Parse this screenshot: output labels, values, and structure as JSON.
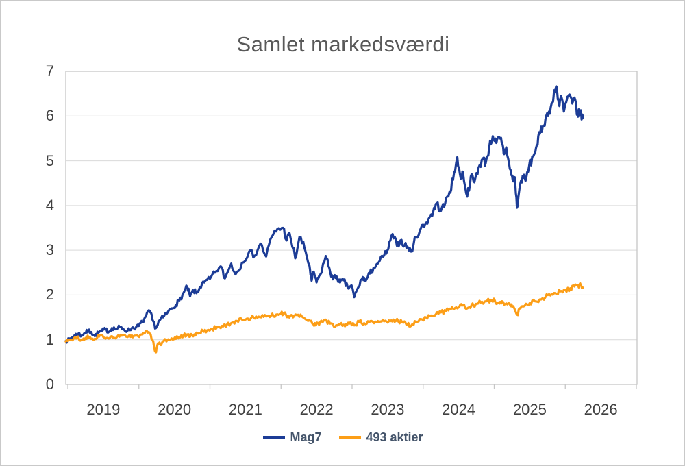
{
  "chart_data": {
    "type": "line",
    "title": "Samlet markedsværdi",
    "xlabel": "",
    "ylabel": "",
    "grid": "horizontal",
    "background": "#ffffff",
    "axis_color": "#c6c6c6",
    "gridline_color": "#d9d9d9",
    "text_color": "#404040",
    "title_color": "#595959",
    "y_axis": {
      "min": 0,
      "max": 7,
      "tick_interval": 1
    },
    "y_tick_labels": [
      "0",
      "1",
      "2",
      "3",
      "4",
      "5",
      "6",
      "7"
    ],
    "x_axis": {
      "ticks_at_year_boundaries": true,
      "first_tick_year": 2019,
      "last_tick_year": 2027,
      "labels_centered_between_ticks": true
    },
    "x_tick_labels": [
      "2019",
      "2020",
      "2021",
      "2022",
      "2023",
      "2024",
      "2025",
      "2026"
    ],
    "legend": {
      "position": "bottom",
      "entries": [
        "Mag7",
        "493 aktier"
      ]
    },
    "series": [
      {
        "name": "Mag7",
        "color": "#1C3C96",
        "points": [
          [
            2018.97,
            0.97
          ],
          [
            2019.02,
            1.0
          ],
          [
            2019.06,
            1.05
          ],
          [
            2019.1,
            1.1
          ],
          [
            2019.15,
            1.14
          ],
          [
            2019.19,
            1.09
          ],
          [
            2019.24,
            1.15
          ],
          [
            2019.29,
            1.2
          ],
          [
            2019.33,
            1.17
          ],
          [
            2019.38,
            1.08
          ],
          [
            2019.43,
            1.16
          ],
          [
            2019.48,
            1.2
          ],
          [
            2019.53,
            1.23
          ],
          [
            2019.58,
            1.18
          ],
          [
            2019.62,
            1.26
          ],
          [
            2019.68,
            1.24
          ],
          [
            2019.73,
            1.28
          ],
          [
            2019.78,
            1.24
          ],
          [
            2019.84,
            1.2
          ],
          [
            2019.9,
            1.26
          ],
          [
            2019.96,
            1.28
          ],
          [
            2020.0,
            1.31
          ],
          [
            2020.05,
            1.4
          ],
          [
            2020.1,
            1.52
          ],
          [
            2020.15,
            1.65
          ],
          [
            2020.19,
            1.45
          ],
          [
            2020.24,
            1.26
          ],
          [
            2020.29,
            1.43
          ],
          [
            2020.34,
            1.5
          ],
          [
            2020.4,
            1.6
          ],
          [
            2020.46,
            1.7
          ],
          [
            2020.52,
            1.78
          ],
          [
            2020.57,
            1.88
          ],
          [
            2020.63,
            2.05
          ],
          [
            2020.68,
            2.18
          ],
          [
            2020.72,
            1.97
          ],
          [
            2020.77,
            2.1
          ],
          [
            2020.81,
            2.04
          ],
          [
            2020.86,
            2.18
          ],
          [
            2020.92,
            2.28
          ],
          [
            2021.0,
            2.36
          ],
          [
            2021.07,
            2.5
          ],
          [
            2021.15,
            2.64
          ],
          [
            2021.21,
            2.37
          ],
          [
            2021.3,
            2.7
          ],
          [
            2021.36,
            2.46
          ],
          [
            2021.45,
            2.72
          ],
          [
            2021.55,
            2.97
          ],
          [
            2021.63,
            2.88
          ],
          [
            2021.71,
            3.15
          ],
          [
            2021.79,
            2.86
          ],
          [
            2021.87,
            3.3
          ],
          [
            2021.95,
            3.48
          ],
          [
            2022.03,
            3.5
          ],
          [
            2022.08,
            3.22
          ],
          [
            2022.12,
            3.38
          ],
          [
            2022.2,
            2.82
          ],
          [
            2022.26,
            3.3
          ],
          [
            2022.33,
            3.05
          ],
          [
            2022.4,
            2.65
          ],
          [
            2022.43,
            2.32
          ],
          [
            2022.46,
            2.52
          ],
          [
            2022.5,
            2.28
          ],
          [
            2022.55,
            2.45
          ],
          [
            2022.63,
            2.87
          ],
          [
            2022.68,
            2.6
          ],
          [
            2022.73,
            2.35
          ],
          [
            2022.78,
            2.42
          ],
          [
            2022.83,
            2.28
          ],
          [
            2022.88,
            2.33
          ],
          [
            2022.94,
            2.15
          ],
          [
            2022.99,
            2.22
          ],
          [
            2023.03,
            1.95
          ],
          [
            2023.09,
            2.18
          ],
          [
            2023.15,
            2.4
          ],
          [
            2023.19,
            2.31
          ],
          [
            2023.25,
            2.48
          ],
          [
            2023.3,
            2.6
          ],
          [
            2023.39,
            2.77
          ],
          [
            2023.45,
            2.88
          ],
          [
            2023.51,
            3.03
          ],
          [
            2023.57,
            3.36
          ],
          [
            2023.63,
            3.1
          ],
          [
            2023.68,
            3.22
          ],
          [
            2023.74,
            3.12
          ],
          [
            2023.79,
            3.05
          ],
          [
            2023.83,
            2.97
          ],
          [
            2023.9,
            3.3
          ],
          [
            2023.97,
            3.5
          ],
          [
            2024.03,
            3.58
          ],
          [
            2024.09,
            3.74
          ],
          [
            2024.14,
            3.85
          ],
          [
            2024.19,
            4.05
          ],
          [
            2024.25,
            3.88
          ],
          [
            2024.31,
            4.05
          ],
          [
            2024.37,
            4.3
          ],
          [
            2024.42,
            4.57
          ],
          [
            2024.48,
            5.08
          ],
          [
            2024.53,
            4.6
          ],
          [
            2024.56,
            4.75
          ],
          [
            2024.62,
            4.2
          ],
          [
            2024.67,
            4.65
          ],
          [
            2024.72,
            4.52
          ],
          [
            2024.78,
            4.85
          ],
          [
            2024.84,
            5.05
          ],
          [
            2024.88,
            4.95
          ],
          [
            2024.93,
            5.3
          ],
          [
            2024.98,
            5.55
          ],
          [
            2025.03,
            5.4
          ],
          [
            2025.08,
            5.5
          ],
          [
            2025.11,
            5.38
          ],
          [
            2025.14,
            5.15
          ],
          [
            2025.17,
            5.3
          ],
          [
            2025.22,
            4.82
          ],
          [
            2025.26,
            4.57
          ],
          [
            2025.29,
            4.63
          ],
          [
            2025.32,
            3.95
          ],
          [
            2025.36,
            4.42
          ],
          [
            2025.4,
            4.66
          ],
          [
            2025.44,
            4.55
          ],
          [
            2025.49,
            4.87
          ],
          [
            2025.55,
            5.1
          ],
          [
            2025.6,
            5.35
          ],
          [
            2025.64,
            5.6
          ],
          [
            2025.68,
            5.75
          ],
          [
            2025.72,
            5.92
          ],
          [
            2025.77,
            6.1
          ],
          [
            2025.82,
            6.3
          ],
          [
            2025.85,
            6.55
          ],
          [
            2025.88,
            6.65
          ],
          [
            2025.91,
            6.25
          ],
          [
            2025.94,
            6.45
          ],
          [
            2025.98,
            6.1
          ],
          [
            2026.02,
            6.35
          ],
          [
            2026.06,
            6.48
          ],
          [
            2026.1,
            6.28
          ],
          [
            2026.14,
            6.36
          ],
          [
            2026.17,
            6.02
          ],
          [
            2026.21,
            6.08
          ],
          [
            2026.25,
            5.95
          ]
        ]
      },
      {
        "name": "493 aktier",
        "color": "#FC9E17",
        "points": [
          [
            2018.97,
            0.96
          ],
          [
            2019.03,
            1.0
          ],
          [
            2019.08,
            1.02
          ],
          [
            2019.13,
            1.04
          ],
          [
            2019.19,
            1.0
          ],
          [
            2019.25,
            1.04
          ],
          [
            2019.31,
            1.06
          ],
          [
            2019.38,
            1.02
          ],
          [
            2019.44,
            1.07
          ],
          [
            2019.5,
            1.06
          ],
          [
            2019.56,
            1.04
          ],
          [
            2019.62,
            1.08
          ],
          [
            2019.69,
            1.06
          ],
          [
            2019.76,
            1.09
          ],
          [
            2019.84,
            1.06
          ],
          [
            2019.9,
            1.1
          ],
          [
            2019.96,
            1.09
          ],
          [
            2020.02,
            1.11
          ],
          [
            2020.08,
            1.14
          ],
          [
            2020.14,
            1.17
          ],
          [
            2020.19,
            1.0
          ],
          [
            2020.24,
            0.72
          ],
          [
            2020.27,
            0.92
          ],
          [
            2020.31,
            0.88
          ],
          [
            2020.35,
            0.97
          ],
          [
            2020.4,
            1.0
          ],
          [
            2020.46,
            1.03
          ],
          [
            2020.52,
            1.02
          ],
          [
            2020.57,
            1.06
          ],
          [
            2020.63,
            1.09
          ],
          [
            2020.68,
            1.12
          ],
          [
            2020.72,
            1.07
          ],
          [
            2020.78,
            1.12
          ],
          [
            2020.84,
            1.14
          ],
          [
            2020.9,
            1.19
          ],
          [
            2020.96,
            1.21
          ],
          [
            2021.03,
            1.24
          ],
          [
            2021.1,
            1.28
          ],
          [
            2021.17,
            1.31
          ],
          [
            2021.24,
            1.34
          ],
          [
            2021.31,
            1.38
          ],
          [
            2021.38,
            1.42
          ],
          [
            2021.45,
            1.45
          ],
          [
            2021.52,
            1.47
          ],
          [
            2021.58,
            1.49
          ],
          [
            2021.65,
            1.52
          ],
          [
            2021.72,
            1.5
          ],
          [
            2021.79,
            1.52
          ],
          [
            2021.86,
            1.54
          ],
          [
            2021.93,
            1.56
          ],
          [
            2022.0,
            1.58
          ],
          [
            2022.04,
            1.6
          ],
          [
            2022.1,
            1.53
          ],
          [
            2022.17,
            1.5
          ],
          [
            2022.24,
            1.56
          ],
          [
            2022.31,
            1.5
          ],
          [
            2022.38,
            1.42
          ],
          [
            2022.44,
            1.36
          ],
          [
            2022.49,
            1.32
          ],
          [
            2022.55,
            1.4
          ],
          [
            2022.62,
            1.45
          ],
          [
            2022.69,
            1.36
          ],
          [
            2022.76,
            1.28
          ],
          [
            2022.83,
            1.35
          ],
          [
            2022.9,
            1.3
          ],
          [
            2022.96,
            1.36
          ],
          [
            2023.03,
            1.32
          ],
          [
            2023.1,
            1.4
          ],
          [
            2023.17,
            1.37
          ],
          [
            2023.24,
            1.39
          ],
          [
            2023.31,
            1.37
          ],
          [
            2023.38,
            1.39
          ],
          [
            2023.45,
            1.41
          ],
          [
            2023.52,
            1.43
          ],
          [
            2023.58,
            1.45
          ],
          [
            2023.65,
            1.41
          ],
          [
            2023.72,
            1.38
          ],
          [
            2023.78,
            1.35
          ],
          [
            2023.83,
            1.31
          ],
          [
            2023.9,
            1.4
          ],
          [
            2023.97,
            1.46
          ],
          [
            2024.04,
            1.5
          ],
          [
            2024.11,
            1.54
          ],
          [
            2024.18,
            1.57
          ],
          [
            2024.25,
            1.61
          ],
          [
            2024.32,
            1.64
          ],
          [
            2024.39,
            1.68
          ],
          [
            2024.45,
            1.71
          ],
          [
            2024.51,
            1.74
          ],
          [
            2024.56,
            1.77
          ],
          [
            2024.62,
            1.7
          ],
          [
            2024.68,
            1.77
          ],
          [
            2024.74,
            1.8
          ],
          [
            2024.81,
            1.83
          ],
          [
            2024.88,
            1.86
          ],
          [
            2024.95,
            1.89
          ],
          [
            2025.01,
            1.87
          ],
          [
            2025.06,
            1.83
          ],
          [
            2025.11,
            1.86
          ],
          [
            2025.17,
            1.81
          ],
          [
            2025.23,
            1.75
          ],
          [
            2025.28,
            1.71
          ],
          [
            2025.32,
            1.56
          ],
          [
            2025.37,
            1.7
          ],
          [
            2025.43,
            1.76
          ],
          [
            2025.5,
            1.82
          ],
          [
            2025.57,
            1.86
          ],
          [
            2025.64,
            1.9
          ],
          [
            2025.72,
            1.95
          ],
          [
            2025.79,
            1.99
          ],
          [
            2025.86,
            2.04
          ],
          [
            2025.93,
            2.08
          ],
          [
            2026.0,
            2.12
          ],
          [
            2026.07,
            2.15
          ],
          [
            2026.13,
            2.19
          ],
          [
            2026.18,
            2.22
          ],
          [
            2026.22,
            2.21
          ],
          [
            2026.25,
            2.16
          ]
        ]
      }
    ]
  }
}
